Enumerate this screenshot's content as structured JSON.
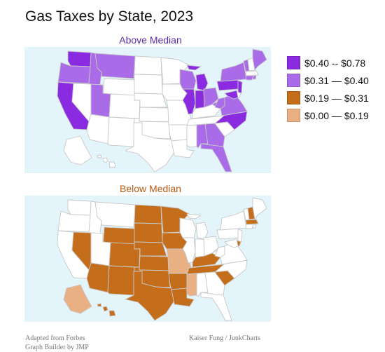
{
  "title": "Gas Taxes by State, 2023",
  "panels": {
    "above": {
      "label": "Above Median",
      "color": "#5b2ca0"
    },
    "below": {
      "label": "Below Median",
      "color": "#b85a12"
    }
  },
  "legend": [
    {
      "label": "$0.40 -- $0.78",
      "color": "#8a2be2"
    },
    {
      "label": "$0.31 — $0.40",
      "color": "#a96be8"
    },
    {
      "label": "$0.19 — $0.31",
      "color": "#c46e1c"
    },
    {
      "label": "$0.00 — $0.19",
      "color": "#e8b083"
    }
  ],
  "footer": {
    "source": "Adapted from Forbes",
    "tool": "Graph Builder by JMP",
    "credit": "Kaiser Fung / JunkCharts"
  },
  "base_color": "#ffffff",
  "background_color": "#e4f4fb"
}
